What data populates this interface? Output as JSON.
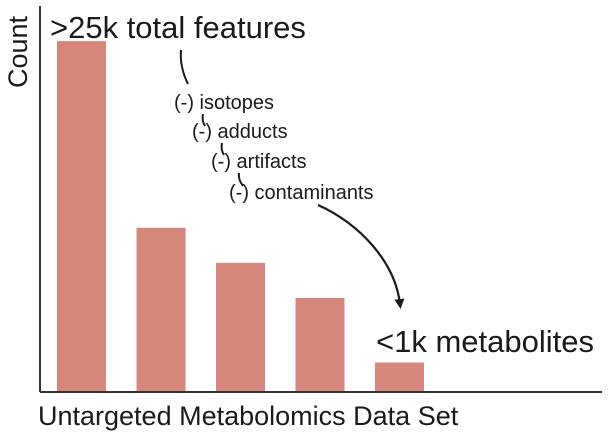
{
  "chart_data": {
    "type": "bar",
    "categories": [
      "",
      "",
      "",
      "",
      ""
    ],
    "values": [
      25,
      11.7,
      9.2,
      6.7,
      2.1
    ],
    "ylim": [
      0,
      27.5
    ],
    "xlabel": "Untargeted Metabolomics Data Set",
    "ylabel": "Count",
    "grid": false,
    "bar_color": "#d4877a",
    "axis_color": "#333333",
    "annotations": {
      "top": ">25k total features",
      "steps": [
        "(-) isotopes",
        "(-) adducts",
        "(-) artifacts",
        "(-) contaminants"
      ],
      "bottom": "<1k metabolites"
    }
  }
}
